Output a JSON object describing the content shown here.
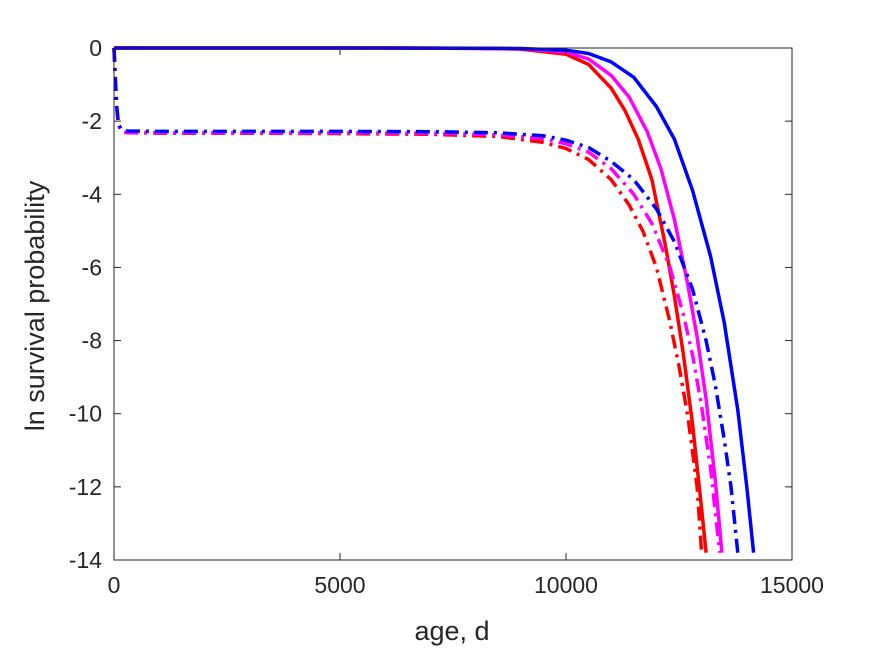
{
  "chart_data": {
    "type": "line",
    "title": "",
    "xlabel": "age, d",
    "ylabel": "ln survival probability",
    "xlim": [
      0,
      15000
    ],
    "ylim": [
      -14,
      0
    ],
    "xticks": [
      0,
      5000,
      10000,
      15000
    ],
    "yticks": [
      0,
      -2,
      -4,
      -6,
      -8,
      -10,
      -12,
      -14
    ],
    "grid": false,
    "legend": "none",
    "series": [
      {
        "color": "#ff0000",
        "style": "solid",
        "x": [
          0,
          2000,
          4000,
          6000,
          8000,
          9000,
          10000,
          10500,
          11000,
          11300,
          11600,
          11900,
          12200,
          12400,
          12600,
          12800,
          13000,
          13100
        ],
        "y": [
          0,
          0,
          0,
          0,
          -0.01,
          -0.03,
          -0.17,
          -0.45,
          -1.1,
          -1.7,
          -2.5,
          -3.6,
          -5.4,
          -6.8,
          -8.4,
          -10.3,
          -12.6,
          -13.8
        ]
      },
      {
        "color": "#ff00ff",
        "style": "solid",
        "x": [
          0,
          2000,
          4000,
          6000,
          8000,
          9000,
          10000,
          10500,
          11000,
          11400,
          11800,
          12100,
          12400,
          12700,
          12900,
          13100,
          13300,
          13450
        ],
        "y": [
          0,
          0,
          0,
          0,
          -0.01,
          -0.02,
          -0.11,
          -0.3,
          -0.75,
          -1.35,
          -2.3,
          -3.3,
          -4.7,
          -6.5,
          -7.9,
          -9.6,
          -11.8,
          -13.8
        ]
      },
      {
        "color": "#0000ff",
        "style": "solid",
        "x": [
          0,
          2000,
          4000,
          6000,
          8000,
          9000,
          10000,
          10500,
          11000,
          11500,
          12000,
          12400,
          12800,
          13200,
          13500,
          13800,
          14000,
          14150
        ],
        "y": [
          0,
          0,
          0,
          0,
          -0.005,
          -0.015,
          -0.06,
          -0.15,
          -0.38,
          -0.8,
          -1.6,
          -2.5,
          -3.9,
          -5.7,
          -7.5,
          -9.9,
          -12.0,
          -13.8
        ]
      },
      {
        "color": "#ff0000",
        "style": "dashdot",
        "x": [
          0,
          30,
          60,
          100,
          150,
          200,
          300,
          1000,
          3000,
          5000,
          7000,
          8500,
          9500,
          10000,
          10500,
          11000,
          11400,
          11700,
          12000,
          12300,
          12500,
          12700,
          12900,
          13000
        ],
        "y": [
          0,
          -0.9,
          -1.6,
          -2.1,
          -2.25,
          -2.3,
          -2.32,
          -2.33,
          -2.33,
          -2.34,
          -2.36,
          -2.42,
          -2.58,
          -2.75,
          -3.05,
          -3.6,
          -4.3,
          -5.0,
          -6.0,
          -7.5,
          -8.7,
          -10.1,
          -12.0,
          -13.8
        ]
      },
      {
        "color": "#ff00ff",
        "style": "dashdot",
        "x": [
          0,
          30,
          60,
          100,
          150,
          200,
          300,
          1000,
          3000,
          5000,
          7000,
          8500,
          9500,
          10000,
          10500,
          11000,
          11500,
          11900,
          12300,
          12600,
          12800,
          13000,
          13200,
          13400
        ],
        "y": [
          0,
          -0.9,
          -1.6,
          -2.1,
          -2.25,
          -2.3,
          -2.31,
          -2.32,
          -2.32,
          -2.32,
          -2.33,
          -2.37,
          -2.48,
          -2.62,
          -2.85,
          -3.3,
          -4.0,
          -4.8,
          -6.0,
          -7.3,
          -8.4,
          -9.8,
          -11.5,
          -13.8
        ]
      },
      {
        "color": "#0000ff",
        "style": "dashdot",
        "x": [
          0,
          30,
          60,
          100,
          150,
          200,
          300,
          1000,
          3000,
          5000,
          7000,
          8500,
          9500,
          10000,
          10500,
          11000,
          11500,
          12000,
          12400,
          12800,
          13100,
          13300,
          13500,
          13650,
          13800
        ],
        "y": [
          0,
          -0.9,
          -1.6,
          -2.08,
          -2.2,
          -2.25,
          -2.27,
          -2.28,
          -2.28,
          -2.28,
          -2.29,
          -2.32,
          -2.4,
          -2.52,
          -2.72,
          -3.1,
          -3.6,
          -4.4,
          -5.3,
          -6.6,
          -8.0,
          -9.2,
          -10.7,
          -12.0,
          -13.8
        ]
      }
    ]
  }
}
